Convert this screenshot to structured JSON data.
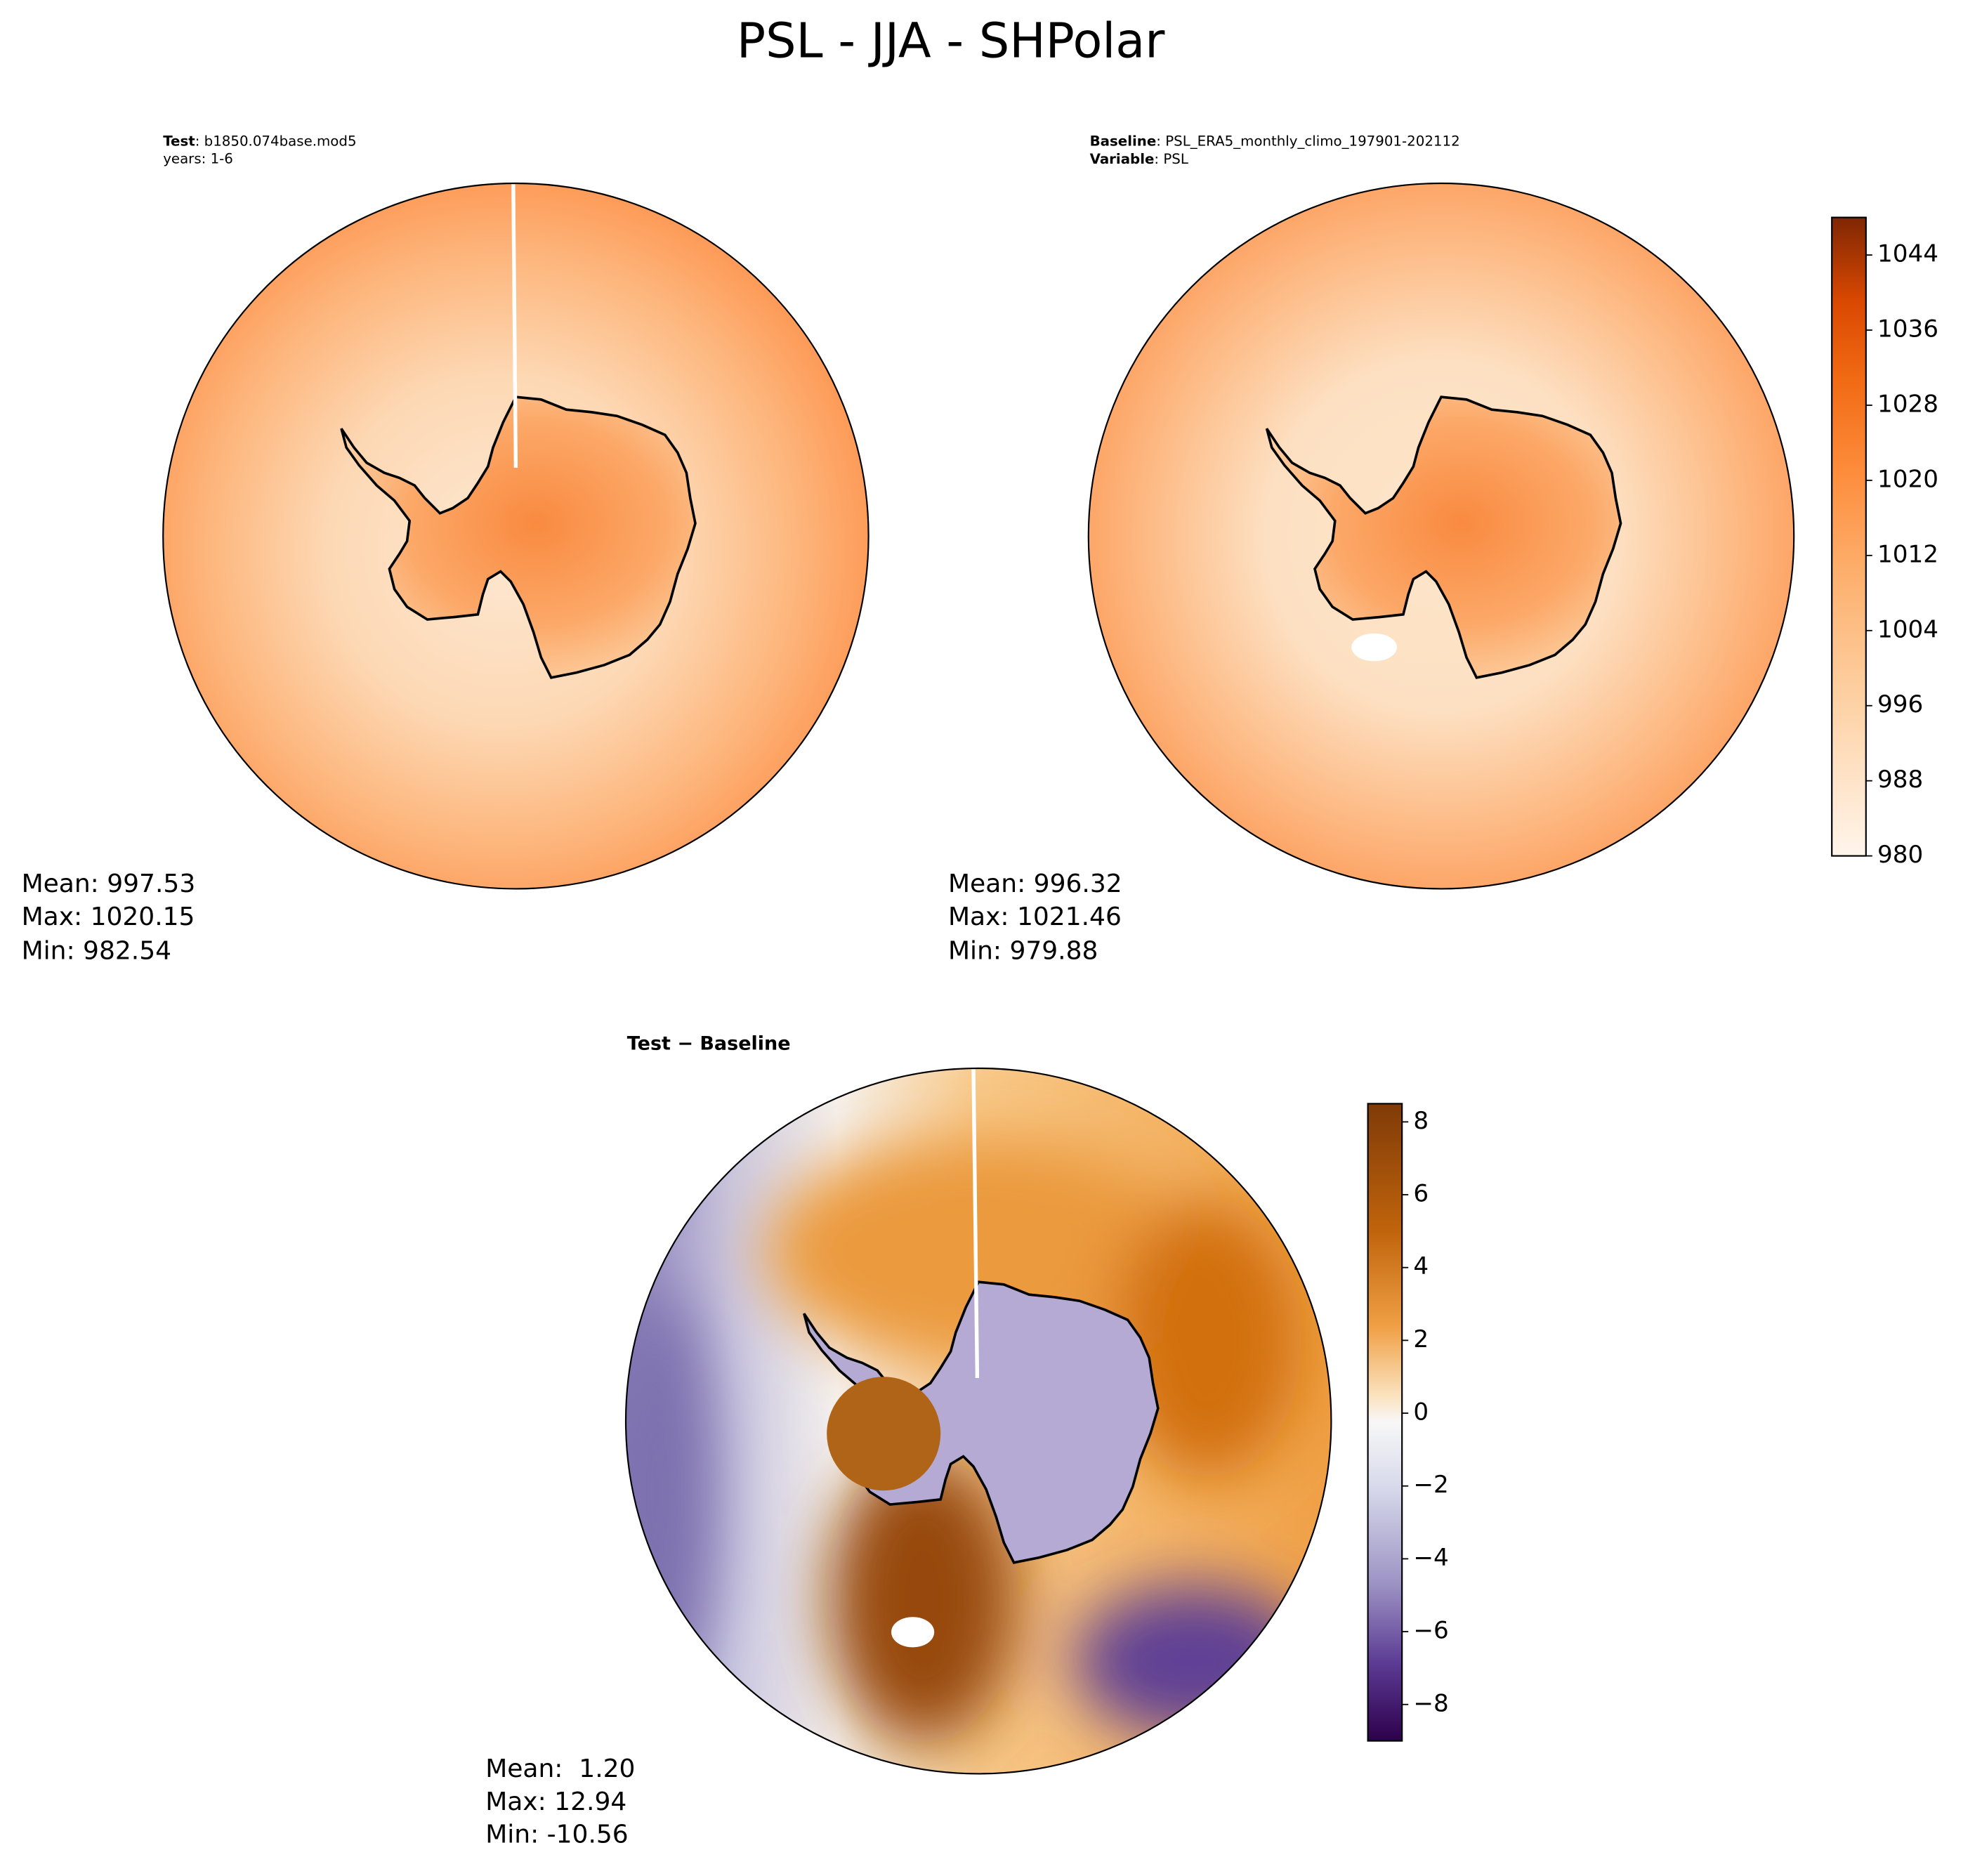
{
  "title": "PSL - JJA - SHPolar",
  "panels": [
    {
      "header": [
        {
          "key": "Test",
          "text": ": b1850.074base.mod5"
        },
        {
          "text": "years: 1-6"
        }
      ],
      "stats": [
        "Mean: 997.53",
        "Max: 1020.15",
        "Min: 982.54"
      ]
    },
    {
      "header": [
        {
          "key": "Baseline",
          "text": ": PSL_ERA5_monthly_climo_197901-202112"
        },
        {
          "key": "Variable",
          "text": ": PSL"
        }
      ],
      "stats": [
        "Mean: 996.32",
        "Max: 1021.46",
        "Min: 979.88"
      ]
    },
    {
      "header": [
        {
          "key": "Test − Baseline"
        }
      ],
      "stats": [
        "Mean:  1.20",
        "Max: 12.94",
        "Min: -10.56"
      ]
    }
  ],
  "colorbars": [
    {
      "lim": [
        980,
        1048
      ],
      "ticks": [
        980,
        988,
        996,
        1004,
        1012,
        1020,
        1028,
        1036,
        1044
      ]
    },
    {
      "lim": [
        -9,
        8.5
      ],
      "ticks": [
        {
          "value": -8,
          "label": "−8"
        },
        {
          "value": -6,
          "label": "−6"
        },
        {
          "value": -4,
          "label": "−4"
        },
        {
          "value": -2,
          "label": "−2"
        },
        0,
        2,
        4,
        6,
        8
      ]
    }
  ]
}
